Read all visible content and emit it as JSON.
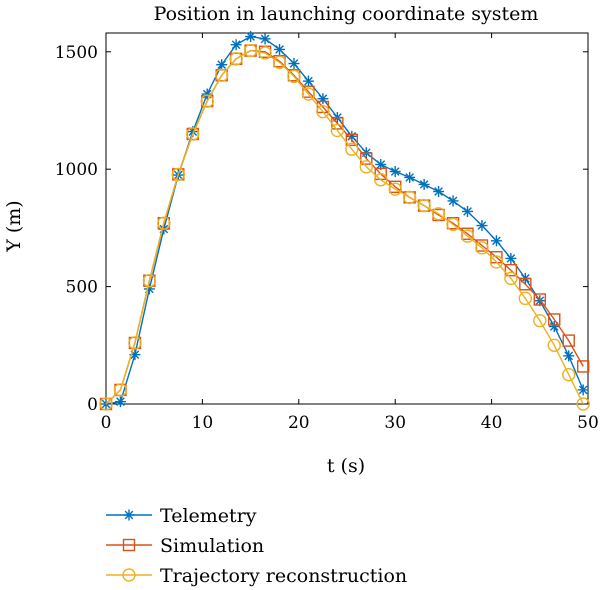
{
  "chart_data": {
    "type": "line",
    "title": "Position in launching coordinate system",
    "xlabel": "t (s)",
    "ylabel": "Y (m)",
    "xlim": [
      0,
      50
    ],
    "ylim": [
      0,
      1580
    ],
    "xticks": [
      0,
      10,
      20,
      30,
      40,
      50
    ],
    "yticks": [
      0,
      500,
      1000,
      1500
    ],
    "grid": false,
    "legend_position": "bottom",
    "series": [
      {
        "name": "Telemetry",
        "color": "#0072BD",
        "marker": "asterisk",
        "x": [
          0,
          1.5,
          3,
          4.5,
          6,
          7.5,
          9,
          10.5,
          12,
          13.5,
          15,
          16.5,
          18,
          19.5,
          21,
          22.5,
          24,
          25.5,
          27,
          28.5,
          30,
          31.5,
          33,
          34.5,
          36,
          37.5,
          39,
          40.5,
          42,
          43.5,
          45,
          46.5,
          48,
          49.5
        ],
        "values": [
          0,
          10,
          210,
          490,
          745,
          975,
          1160,
          1320,
          1445,
          1530,
          1565,
          1555,
          1510,
          1450,
          1375,
          1300,
          1220,
          1140,
          1070,
          1020,
          990,
          965,
          935,
          905,
          865,
          820,
          760,
          695,
          620,
          535,
          440,
          330,
          205,
          60
        ]
      },
      {
        "name": "Simulation",
        "color": "#D95319",
        "marker": "square",
        "x": [
          0,
          1.5,
          3,
          4.5,
          6,
          7.5,
          9,
          10.5,
          12,
          13.5,
          15,
          16.5,
          18,
          19.5,
          21,
          22.5,
          24,
          25.5,
          27,
          28.5,
          30,
          31.5,
          33,
          34.5,
          36,
          37.5,
          39,
          40.5,
          42,
          43.5,
          45,
          46.5,
          48,
          49.5
        ],
        "values": [
          0,
          60,
          260,
          525,
          770,
          978,
          1150,
          1290,
          1400,
          1470,
          1505,
          1500,
          1460,
          1400,
          1330,
          1265,
          1195,
          1125,
          1045,
          980,
          925,
          880,
          845,
          805,
          770,
          725,
          675,
          625,
          570,
          510,
          445,
          360,
          270,
          160
        ]
      },
      {
        "name": "Trajectory reconstruction",
        "color": "#EDB120",
        "marker": "circle",
        "x": [
          0,
          1.5,
          3,
          4.5,
          6,
          7.5,
          9,
          10.5,
          12,
          13.5,
          15,
          16.5,
          18,
          19.5,
          21,
          22.5,
          24,
          25.5,
          27,
          28.5,
          30,
          31.5,
          33,
          34.5,
          36,
          37.5,
          39,
          40.5,
          42,
          43.5,
          45,
          46.5,
          48,
          49.5
        ],
        "values": [
          0,
          60,
          260,
          525,
          770,
          978,
          1150,
          1290,
          1400,
          1470,
          1505,
          1495,
          1455,
          1395,
          1320,
          1245,
          1165,
          1085,
          1010,
          955,
          915,
          880,
          845,
          810,
          765,
          715,
          665,
          605,
          535,
          450,
          355,
          250,
          125,
          0
        ]
      }
    ]
  }
}
